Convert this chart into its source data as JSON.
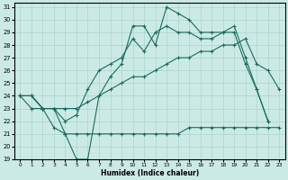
{
  "xlabel": "Humidex (Indice chaleur)",
  "bg_color": "#cceae5",
  "grid_color": "#aad4ce",
  "line_color": "#1a6b60",
  "xmin": 0,
  "xmax": 23,
  "ymin": 19,
  "ymax": 31,
  "line1_x": [
    0,
    1,
    2,
    3,
    4,
    5,
    6,
    7,
    8,
    9,
    10,
    11,
    12,
    13,
    14,
    15,
    16,
    17,
    18,
    19,
    20,
    21,
    22,
    23
  ],
  "line1_y": [
    24.0,
    24.0,
    23.0,
    23.0,
    21.0,
    19.0,
    19.0,
    24.0,
    25.5,
    26.5,
    29.5,
    29.5,
    28.0,
    31.0,
    30.5,
    30.0,
    29.0,
    29.0,
    29.0,
    29.5,
    27.0,
    24.5,
    22.0,
    null
  ],
  "line2_x": [
    0,
    1,
    2,
    3,
    4,
    5,
    6,
    7,
    8,
    9,
    10,
    11,
    12,
    13,
    14,
    15,
    16,
    17,
    18,
    19,
    20,
    21,
    22
  ],
  "line2_y": [
    24.0,
    24.0,
    23.0,
    23.0,
    22.0,
    22.5,
    24.5,
    26.0,
    26.5,
    27.0,
    28.5,
    27.5,
    29.0,
    29.5,
    29.0,
    29.0,
    28.5,
    28.5,
    29.0,
    29.0,
    26.5,
    24.5,
    22.0
  ],
  "line3_x": [
    0,
    1,
    2,
    3,
    4,
    5,
    6,
    7,
    8,
    9,
    10,
    11,
    12,
    13,
    14,
    15,
    16,
    17,
    18,
    19,
    20,
    21,
    22,
    23
  ],
  "line3_y": [
    24.0,
    24.0,
    23.0,
    23.0,
    23.0,
    23.0,
    23.5,
    24.0,
    24.5,
    25.0,
    25.5,
    25.5,
    26.0,
    26.5,
    27.0,
    27.0,
    27.5,
    27.5,
    28.0,
    28.0,
    28.5,
    26.5,
    26.0,
    24.5
  ],
  "line4_x": [
    0,
    1,
    2,
    3,
    4,
    5,
    6,
    7,
    8,
    9,
    10,
    11,
    12,
    13,
    14,
    15,
    16,
    17,
    18,
    19,
    20,
    21,
    22,
    23
  ],
  "line4_y": [
    24.0,
    23.0,
    23.0,
    21.5,
    21.0,
    21.0,
    21.0,
    21.0,
    21.0,
    21.0,
    21.0,
    21.0,
    21.0,
    21.0,
    21.0,
    21.5,
    21.5,
    21.5,
    21.5,
    21.5,
    21.5,
    21.5,
    21.5,
    21.5
  ]
}
